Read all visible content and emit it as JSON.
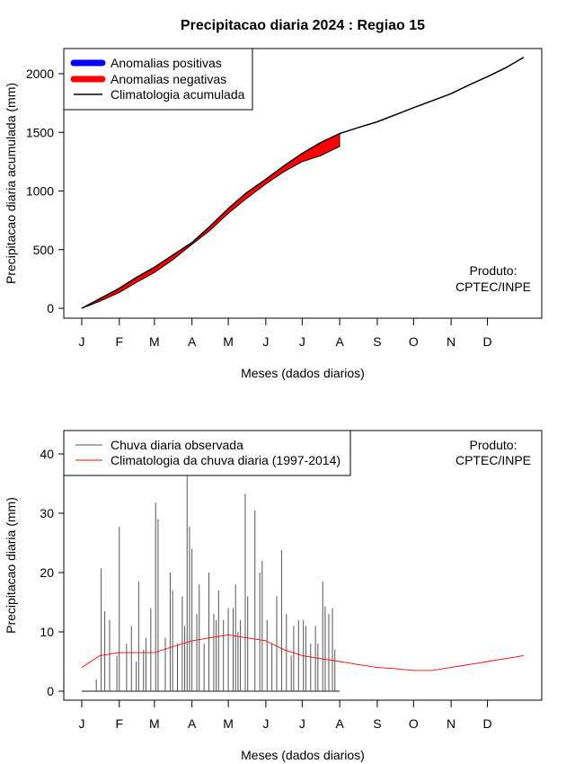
{
  "title": "Precipitacao diaria 2024 : Regiao 15",
  "month_labels": [
    "J",
    "F",
    "M",
    "A",
    "M",
    "J",
    "J",
    "A",
    "S",
    "O",
    "N",
    "D"
  ],
  "chart_data": [
    {
      "type": "area",
      "title": "Precipitacao diaria 2024 : Regiao 15",
      "xlabel": "Meses (dados diarios)",
      "ylabel": "Precipitacao diaria acumulada (mm)",
      "xlim": [
        1,
        366
      ],
      "ylim": [
        0,
        2150
      ],
      "yticks": [
        0,
        500,
        1000,
        1500,
        2000
      ],
      "month_ticks": [
        1,
        32,
        61,
        92,
        122,
        153,
        183,
        214,
        245,
        275,
        306,
        336
      ],
      "legend": {
        "position": "top-left",
        "entries": [
          {
            "label": "Anomalias positivas",
            "color": "#0000ff",
            "style": "thick-line"
          },
          {
            "label": "Anomalias negativas",
            "color": "#ff0000",
            "style": "thick-line"
          },
          {
            "label": "Climatologia acumulada",
            "color": "#000000",
            "style": "line"
          }
        ]
      },
      "annotation": [
        "Produto:",
        "CPTEC/INPE"
      ],
      "climatology_cumulative": {
        "x": [
          1,
          16,
          32,
          46,
          61,
          76,
          92,
          107,
          122,
          137,
          153,
          168,
          183,
          198,
          214,
          229,
          245,
          260,
          275,
          290,
          306,
          321,
          336,
          351,
          366
        ],
        "y": [
          0,
          82,
          170,
          262,
          350,
          452,
          560,
          700,
          850,
          985,
          1100,
          1215,
          1320,
          1412,
          1490,
          1540,
          1590,
          1650,
          1710,
          1768,
          1830,
          1905,
          1975,
          2050,
          2140
        ]
      },
      "observed_cumulative": {
        "x": [
          1,
          16,
          32,
          46,
          61,
          76,
          92,
          107,
          122,
          137,
          153,
          168,
          183,
          198,
          214
        ],
        "y": [
          0,
          60,
          135,
          220,
          305,
          412,
          545,
          665,
          810,
          935,
          1060,
          1165,
          1250,
          1300,
          1380
        ]
      },
      "anomaly": "negative"
    },
    {
      "type": "bar",
      "title": "",
      "xlabel": "Meses (dados diarios)",
      "ylabel": "Precipitacao diaria (mm)",
      "xlim": [
        1,
        366
      ],
      "ylim": [
        0,
        40
      ],
      "yticks": [
        0,
        10,
        20,
        30,
        40
      ],
      "month_ticks": [
        1,
        32,
        61,
        92,
        122,
        153,
        183,
        214,
        245,
        275,
        306,
        336
      ],
      "legend": {
        "position": "top-left",
        "entries": [
          {
            "label": "Chuva diaria observada",
            "color": "#555555"
          },
          {
            "label": "Climatologia da chuva diaria (1997-2014)",
            "color": "#ff0000"
          }
        ]
      },
      "annotation": [
        "Produto:",
        "CPTEC/INPE"
      ],
      "observed_peaks": {
        "day": [
          13,
          17,
          20,
          24,
          30,
          32,
          38,
          42,
          46,
          48,
          52,
          54,
          58,
          62,
          64,
          70,
          74,
          76,
          80,
          84,
          86,
          88,
          90,
          92,
          96,
          98,
          102,
          106,
          110,
          112,
          114,
          118,
          122,
          126,
          128,
          130,
          132,
          136,
          138,
          144,
          148,
          150,
          154,
          158,
          162,
          166,
          170,
          174,
          176,
          180,
          184,
          186,
          190,
          194,
          196,
          200,
          202,
          205,
          208,
          210
        ],
        "value": [
          2,
          20.7,
          13.5,
          12,
          6,
          27.7,
          8,
          11,
          5,
          18.5,
          7,
          9,
          14,
          31.8,
          29,
          9,
          20,
          17,
          8,
          16,
          11,
          36.3,
          27.7,
          24,
          13,
          18,
          8,
          20,
          13,
          12,
          17,
          12,
          14,
          14,
          18,
          10,
          12,
          33.3,
          16,
          30.5,
          20,
          22,
          12,
          8,
          16,
          23.8,
          13,
          6,
          11,
          12,
          12,
          11,
          8,
          11,
          8,
          18.5,
          14.3,
          13,
          14,
          7
        ]
      },
      "climatology_daily": {
        "x": [
          1,
          16,
          32,
          46,
          61,
          76,
          92,
          107,
          122,
          137,
          153,
          168,
          183,
          198,
          214,
          229,
          245,
          260,
          275,
          290,
          306,
          321,
          336,
          351,
          366
        ],
        "y": [
          4,
          6,
          6.5,
          6.5,
          6.5,
          7.5,
          8.5,
          9,
          9.5,
          9,
          8.5,
          7,
          6,
          5.5,
          5,
          4.5,
          4,
          3.8,
          3.5,
          3.5,
          4,
          4.5,
          5,
          5.5,
          6
        ]
      }
    }
  ]
}
